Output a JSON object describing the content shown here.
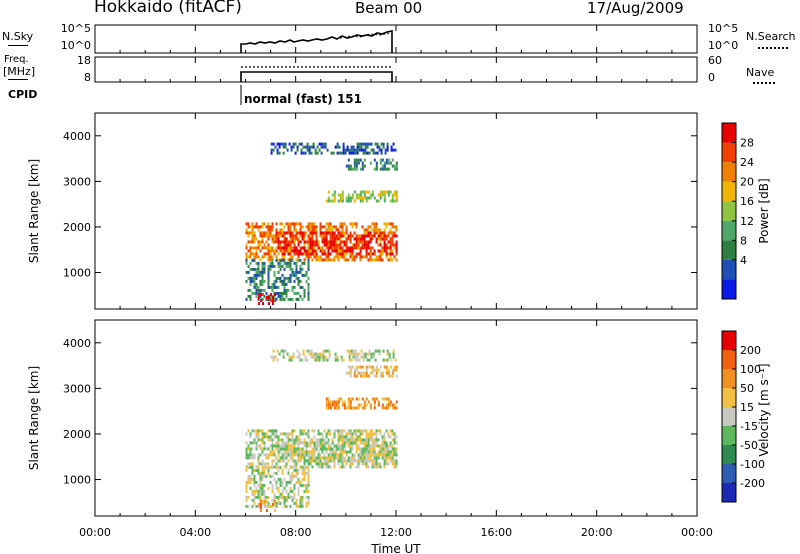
{
  "header": {
    "station": "Hokkaido (fitACF)",
    "beam": "Beam 00",
    "date": "17/Aug/2009"
  },
  "top_panels": {
    "nsky_label": "N.Sky",
    "nsky_ticks_left": [
      "10^5",
      "10^0"
    ],
    "nsky_ticks_right": [
      "10^5",
      "10^0"
    ],
    "nsearch_label": "N.Search",
    "freq_label_line1": "Freq.",
    "freq_label_line2": "[MHz]",
    "freq_ticks_left": [
      "18",
      "8"
    ],
    "nave_ticks_right": [
      "60",
      "0"
    ],
    "nave_label": "Nave",
    "cpid_label": "CPID",
    "cpid_text": "normal (fast) 151"
  },
  "power_panel": {
    "ylabel": "Slant Range [km]",
    "colorbar_label": "Power [dB]",
    "colorbar_ticks": [
      "28",
      "24",
      "20",
      "16",
      "12",
      "8",
      "4"
    ],
    "colors": [
      "#0a1ae6",
      "#1f4fb4",
      "#2f8040",
      "#4fa868",
      "#8cc63f",
      "#f0b400",
      "#f08000",
      "#f04000",
      "#e60000"
    ]
  },
  "velocity_panel": {
    "ylabel": "Slant Range [km]",
    "colorbar_label": "Velocity [m s⁻¹]",
    "colorbar_ticks": [
      "200",
      "100",
      "50",
      "15",
      "-15",
      "-50",
      "-100",
      "-200"
    ],
    "colors": [
      "#1a2ab4",
      "#2f5cb0",
      "#2f8a50",
      "#5cb85c",
      "#c8c8c0",
      "#f0c040",
      "#f09020",
      "#f06010",
      "#e60000"
    ]
  },
  "chart_data": {
    "type": "heatmap",
    "xlabel": "Time UT",
    "x_ticks": [
      "00:00",
      "04:00",
      "08:00",
      "12:00",
      "16:00",
      "20:00",
      "00:00"
    ],
    "xlim": [
      0,
      24
    ],
    "ylabel": "Slant Range [km]",
    "y_ticks": [
      1000,
      2000,
      3000,
      4000
    ],
    "ylim": [
      200,
      4500
    ],
    "data_time_range": [
      6,
      12
    ],
    "cpid": "normal (fast) 151",
    "power_scale": {
      "label": "Power [dB]",
      "ticks": [
        4,
        8,
        12,
        16,
        20,
        24,
        28
      ]
    },
    "velocity_scale": {
      "label": "Velocity [m s⁻¹]",
      "ticks": [
        -200,
        -100,
        -50,
        -15,
        15,
        50,
        100,
        200
      ]
    },
    "echo_regions": [
      {
        "t0": 6.0,
        "t1": 12.0,
        "r0": 1300,
        "r1": 2100,
        "power_level": 6,
        "velocity_level": 4
      },
      {
        "t0": 7.2,
        "t1": 12.0,
        "r0": 1400,
        "r1": 1900,
        "power_level": 8,
        "velocity_level": 4
      },
      {
        "t0": 9.2,
        "t1": 12.0,
        "r0": 2600,
        "r1": 2800,
        "power_level": 4,
        "velocity_level": 6
      },
      {
        "t0": 10.0,
        "t1": 12.0,
        "r0": 3300,
        "r1": 3500,
        "power_level": 2,
        "velocity_level": 5
      },
      {
        "t0": 7.0,
        "t1": 12.0,
        "r0": 3600,
        "r1": 3850,
        "power_level": 1,
        "velocity_level": 4
      },
      {
        "t0": 6.0,
        "t1": 8.5,
        "r0": 400,
        "r1": 1300,
        "power_level": 2,
        "velocity_level": 4
      },
      {
        "t0": 6.5,
        "t1": 7.2,
        "r0": 300,
        "r1": 550,
        "power_level": 8,
        "velocity_level": 6
      }
    ]
  }
}
